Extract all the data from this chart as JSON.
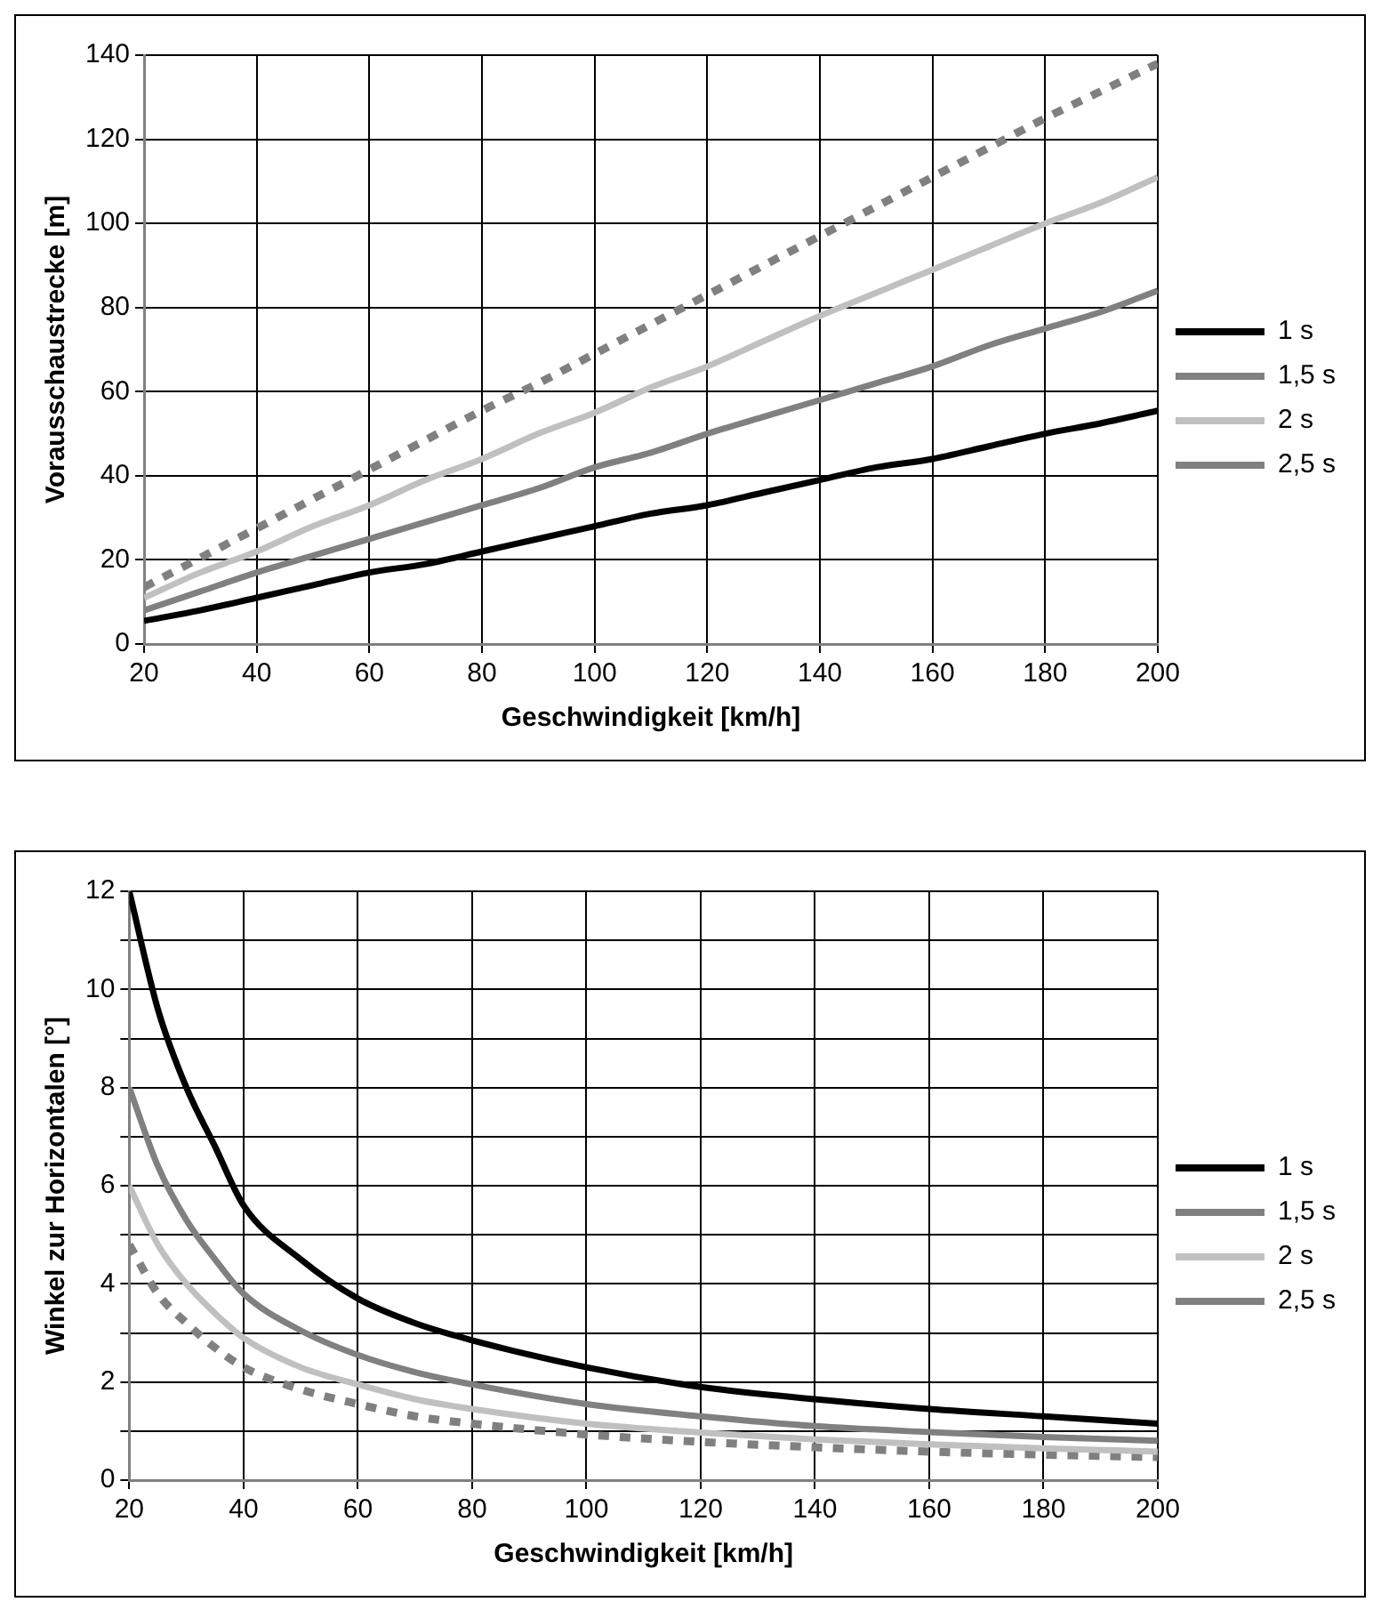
{
  "chart_data": [
    {
      "type": "line",
      "xlabel": "Geschwindigkeit [km/h]",
      "ylabel": "Vorausschaustrecke [m]",
      "x": [
        20,
        30,
        40,
        50,
        60,
        70,
        80,
        90,
        100,
        110,
        120,
        130,
        140,
        150,
        160,
        170,
        180,
        190,
        200
      ],
      "xlim": [
        20,
        200
      ],
      "xticks": [
        20,
        40,
        60,
        80,
        100,
        120,
        140,
        160,
        180,
        200
      ],
      "ylim": [
        0,
        140
      ],
      "yticks": [
        0,
        20,
        40,
        60,
        80,
        100,
        120,
        140
      ],
      "grid": true,
      "legend": "right",
      "series": [
        {
          "name": "1 s",
          "color": "#000000",
          "values": [
            5.5,
            8,
            11,
            14,
            17,
            19,
            22,
            25,
            28,
            31,
            33,
            36,
            39,
            42,
            44,
            47,
            50,
            52.5,
            55.5
          ]
        },
        {
          "name": "1,5 s",
          "color": "#808080",
          "values": [
            8,
            12.5,
            17,
            21,
            25,
            29,
            33,
            37,
            42,
            45.5,
            50,
            54,
            58,
            62,
            66,
            71,
            75,
            79,
            84
          ]
        },
        {
          "name": "2 s",
          "color": "#c0c0c0",
          "values": [
            11,
            17,
            22,
            28,
            33,
            39,
            44,
            50,
            55,
            61,
            66,
            72,
            78,
            83.5,
            89,
            94.5,
            100,
            105,
            111
          ]
        },
        {
          "name": "2,5 s",
          "color": "#808080",
          "line_style": "dashed",
          "values": [
            13.5,
            20.5,
            27.5,
            34.5,
            41.5,
            48.5,
            55.5,
            62,
            69,
            76,
            83,
            90,
            97,
            104,
            111,
            118,
            125,
            131.5,
            138
          ]
        }
      ]
    },
    {
      "type": "line",
      "xlabel": "Geschwindigkeit [km/h]",
      "ylabel": "Winkel zur Horizontalen [°]",
      "x": [
        20,
        25,
        30,
        35,
        40,
        50,
        60,
        70,
        80,
        100,
        120,
        140,
        160,
        180,
        200
      ],
      "xlim": [
        20,
        200
      ],
      "xticks": [
        20,
        40,
        60,
        80,
        100,
        120,
        140,
        160,
        180,
        200
      ],
      "ylim": [
        0,
        12
      ],
      "yticks": [
        0,
        {
          "value": 1,
          "label": null
        },
        2,
        {
          "value": 3,
          "label": null
        },
        4,
        {
          "value": 5,
          "label": null
        },
        6,
        {
          "value": 7,
          "label": null
        },
        8,
        {
          "value": 9,
          "label": null
        },
        10,
        {
          "value": 11,
          "label": null
        },
        12
      ],
      "grid": true,
      "legend": "right",
      "series": [
        {
          "name": "1 s",
          "color": "#000000",
          "values": [
            12,
            9.6,
            8,
            6.8,
            5.6,
            4.5,
            3.7,
            3.2,
            2.85,
            2.3,
            1.9,
            1.65,
            1.45,
            1.3,
            1.15
          ]
        },
        {
          "name": "1,5 s",
          "color": "#808080",
          "values": [
            8,
            6.4,
            5.3,
            4.5,
            3.8,
            3.05,
            2.55,
            2.2,
            1.95,
            1.55,
            1.3,
            1.1,
            0.98,
            0.88,
            0.8
          ]
        },
        {
          "name": "2 s",
          "color": "#c0c0c0",
          "values": [
            6,
            4.8,
            4,
            3.4,
            2.9,
            2.3,
            1.95,
            1.65,
            1.45,
            1.15,
            0.97,
            0.83,
            0.73,
            0.65,
            0.58
          ]
        },
        {
          "name": "2,5 s",
          "color": "#808080",
          "line_style": "dashed",
          "values": [
            4.8,
            3.8,
            3.2,
            2.7,
            2.3,
            1.85,
            1.55,
            1.3,
            1.15,
            0.93,
            0.78,
            0.67,
            0.58,
            0.52,
            0.47
          ]
        }
      ]
    }
  ]
}
